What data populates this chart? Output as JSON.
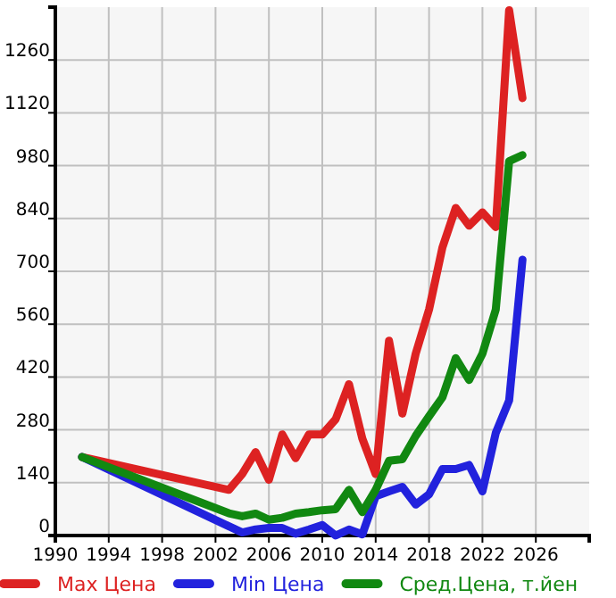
{
  "chart_data": {
    "type": "line",
    "xlim": [
      1990,
      2030
    ],
    "xticks": [
      1990,
      1994,
      1998,
      2002,
      2006,
      2010,
      2014,
      2018,
      2022,
      2026
    ],
    "ylim": [
      0,
      1400
    ],
    "yticks": [
      0,
      140,
      280,
      420,
      560,
      700,
      840,
      980,
      1120,
      1260
    ],
    "grid": true,
    "legend": "bottom",
    "marker": "none",
    "line_style": "solid",
    "series": [
      {
        "name": "Max Цена",
        "color": "#dd2222",
        "x": [
          1992,
          2003,
          2004,
          2005,
          2006,
          2007,
          2008,
          2009,
          2010,
          2011,
          2012,
          2013,
          2014,
          2015,
          2016,
          2017,
          2018,
          2019,
          2020,
          2021,
          2022,
          2023,
          2024,
          2025
        ],
        "values": [
          208,
          121,
          163,
          221,
          148,
          268,
          205,
          268,
          268,
          308,
          401,
          257,
          163,
          516,
          323,
          482,
          599,
          763,
          868,
          821,
          856,
          817,
          1392,
          1159
        ]
      },
      {
        "name": "Min Цена",
        "color": "#2222dd",
        "x": [
          1992,
          2004,
          2005,
          2006,
          2007,
          2008,
          2009,
          2010,
          2011,
          2012,
          2013,
          2014,
          2015,
          2016,
          2017,
          2018,
          2019,
          2020,
          2021,
          2022,
          2023,
          2024,
          2025
        ],
        "values": [
          208,
          8,
          16,
          20,
          20,
          5,
          16,
          28,
          0,
          16,
          3,
          104,
          117,
          129,
          82,
          109,
          176,
          176,
          187,
          117,
          272,
          358,
          731
        ]
      },
      {
        "name": "Сред.Цена, т.йен",
        "color": "#118811",
        "x": [
          1992,
          2003,
          2004,
          2005,
          2006,
          2007,
          2008,
          2009,
          2010,
          2011,
          2012,
          2013,
          2014,
          2015,
          2016,
          2017,
          2018,
          2019,
          2020,
          2021,
          2022,
          2023,
          2024,
          2025
        ],
        "values": [
          208,
          59,
          51,
          58,
          42,
          47,
          58,
          62,
          67,
          70,
          121,
          62,
          121,
          198,
          202,
          264,
          316,
          366,
          470,
          412,
          482,
          599,
          992,
          1008
        ]
      }
    ]
  }
}
